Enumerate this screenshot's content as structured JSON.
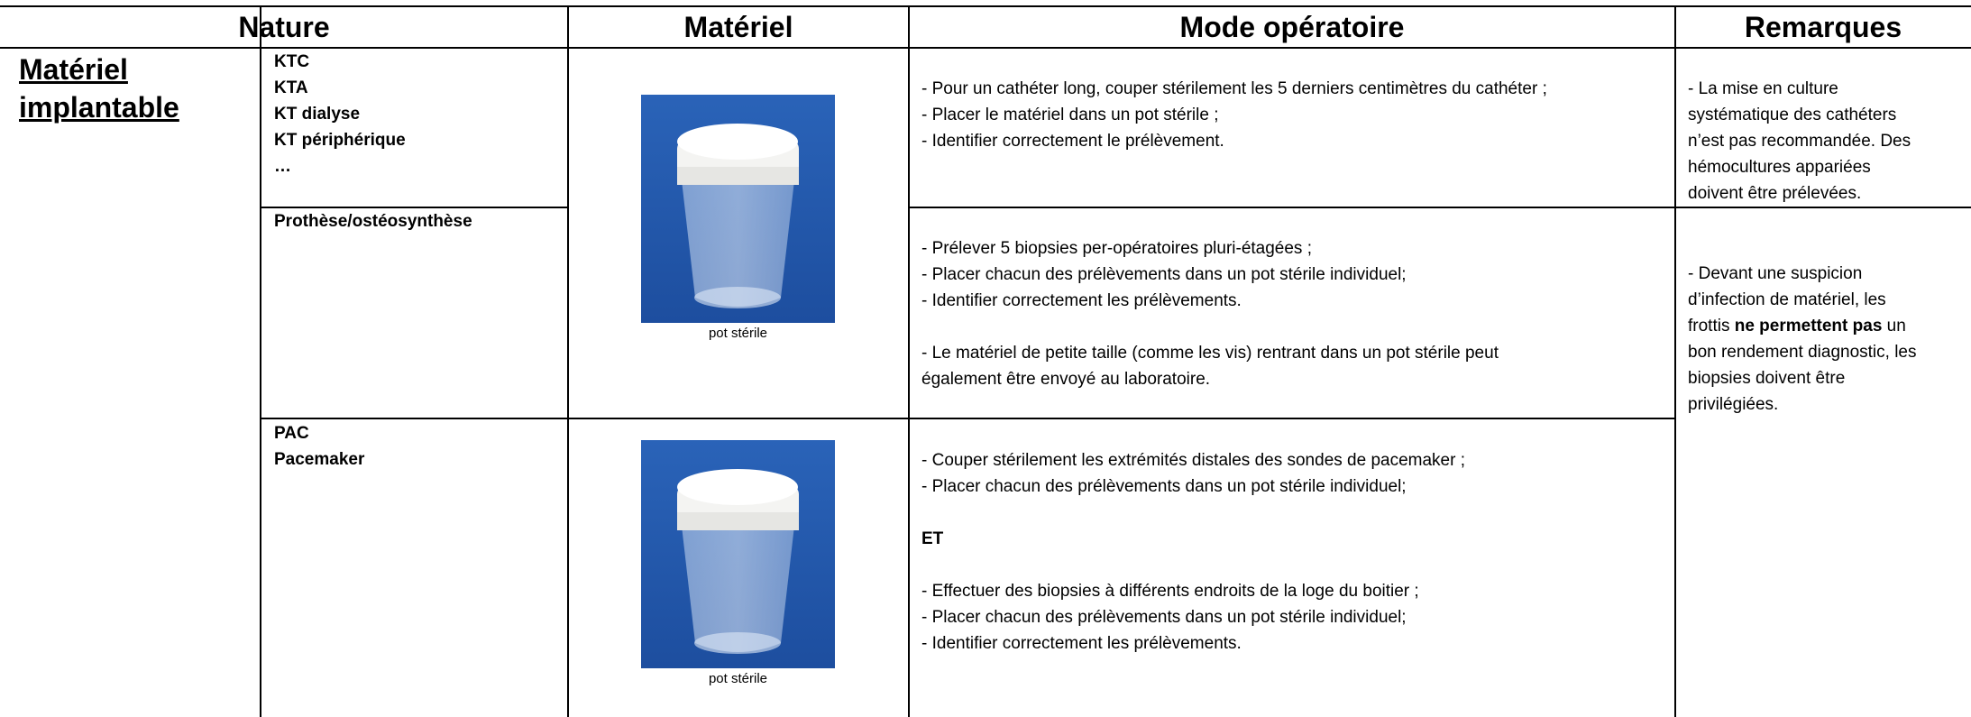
{
  "table": {
    "header": [
      "Nature",
      "Matériel",
      "Mode opératoire",
      "Remarques"
    ],
    "category": "Matériel implantable",
    "rows": [
      {
        "nature": [
          "KTC",
          "KTA",
          "KT dialyse",
          "KT périphérique",
          "…"
        ],
        "mode": [
          [
            "- Pour un cathéter long, couper stérilement les 5 derniers centimètres du cathéter ;",
            "- Placer le matériel dans un pot stérile ;",
            "- Identifier correctement le prélèvement."
          ]
        ],
        "remarks": [
          "- La mise en culture",
          "systématique des cathéters",
          "n’est pas recommandée. Des",
          "hémocultures appariées",
          "doivent être prélevées."
        ]
      },
      {
        "nature": [
          "Prothèse/ostéosynthèse"
        ],
        "mode": [
          [
            "- Prélever 5 biopsies per-opératoires pluri-étagées ;",
            "- Placer chacun des prélèvements dans un pot stérile individuel;",
            "- Identifier correctement les prélèvements."
          ],
          [
            "- Le matériel de petite taille (comme les vis) rentrant dans un pot stérile peut",
            "également être envoyé au laboratoire."
          ]
        ],
        "remarks": [
          "- Devant une suspicion",
          "d’infection de matériel, les",
          [
            "frottis ",
            "ne permettent pas",
            " un"
          ],
          "bon rendement diagnostic, les",
          "biopsies doivent être",
          "privilégiées."
        ]
      },
      {
        "nature": [
          "PAC",
          "Pacemaker"
        ],
        "mode": [
          [
            "- Couper stérilement les extrémités distales des sondes de pacemaker ;",
            "- Placer chacun des prélèvements dans un pot stérile individuel;"
          ],
          [
            "ET"
          ],
          [
            "- Effectuer des biopsies à différents endroits de la loge du boitier ;",
            "- Placer chacun des prélèvements dans un pot stérile individuel;",
            "- Identifier correctement les prélèvements."
          ]
        ]
      }
    ],
    "image_captions": [
      "pot stérile",
      "pot stérile"
    ]
  }
}
